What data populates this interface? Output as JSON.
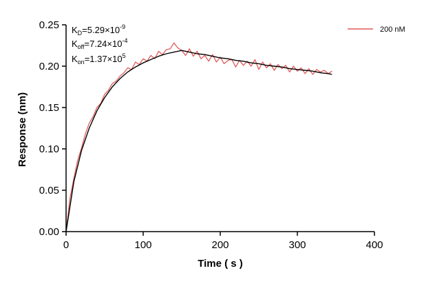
{
  "chart_data": {
    "type": "line",
    "title": "",
    "xlabel": "Time ( s )",
    "ylabel": "Response (nm)",
    "xlim": [
      0,
      400
    ],
    "ylim": [
      0,
      0.25
    ],
    "x_ticks": [
      0,
      100,
      200,
      300,
      400
    ],
    "y_ticks": [
      0.0,
      0.05,
      0.1,
      0.15,
      0.2,
      0.25
    ],
    "x_tick_labels": [
      "0",
      "100",
      "200",
      "300",
      "400"
    ],
    "y_tick_labels": [
      "0.00",
      "0.05",
      "0.10",
      "0.15",
      "0.20",
      "0.25"
    ],
    "grid": false,
    "legend": {
      "position": "top-right",
      "entries": [
        {
          "label": "200 nM",
          "color": "#e05a5a"
        }
      ]
    },
    "kinetics": {
      "kd": {
        "base": "K",
        "sub": "D",
        "mant": "=5.29×10",
        "exp": "-9"
      },
      "koff": {
        "base": "K",
        "sub": "off",
        "mant": "=7.24×10",
        "exp": "-4"
      },
      "kon": {
        "base": "K",
        "sub": "on",
        "mant": "=1.37×10",
        "exp": "5"
      }
    },
    "series": [
      {
        "name": "200 nM",
        "kind": "measured",
        "color": "#e05a5a",
        "x": [
          0,
          5,
          10,
          15,
          20,
          25,
          30,
          35,
          40,
          45,
          50,
          55,
          60,
          65,
          70,
          75,
          80,
          85,
          90,
          95,
          100,
          105,
          110,
          115,
          120,
          125,
          130,
          135,
          140,
          145,
          150,
          155,
          160,
          165,
          170,
          175,
          180,
          185,
          190,
          195,
          200,
          205,
          210,
          215,
          220,
          225,
          230,
          235,
          240,
          245,
          250,
          255,
          260,
          265,
          270,
          275,
          280,
          285,
          290,
          295,
          300,
          305,
          310,
          315,
          320,
          325,
          330,
          335,
          340,
          345
        ],
        "y": [
          0.0,
          0.04,
          0.064,
          0.086,
          0.101,
          0.118,
          0.131,
          0.139,
          0.15,
          0.155,
          0.166,
          0.171,
          0.179,
          0.182,
          0.188,
          0.192,
          0.198,
          0.196,
          0.205,
          0.202,
          0.209,
          0.206,
          0.213,
          0.209,
          0.218,
          0.214,
          0.22,
          0.221,
          0.228,
          0.222,
          0.219,
          0.213,
          0.221,
          0.212,
          0.218,
          0.209,
          0.213,
          0.206,
          0.214,
          0.205,
          0.211,
          0.203,
          0.207,
          0.208,
          0.199,
          0.207,
          0.201,
          0.206,
          0.2,
          0.208,
          0.196,
          0.205,
          0.198,
          0.203,
          0.195,
          0.202,
          0.197,
          0.201,
          0.193,
          0.2,
          0.194,
          0.198,
          0.191,
          0.197,
          0.19,
          0.196,
          0.193,
          0.195,
          0.191,
          0.194
        ]
      },
      {
        "name": "fit",
        "kind": "fit",
        "color": "#000000",
        "x": [
          0,
          10,
          20,
          30,
          40,
          50,
          60,
          70,
          80,
          90,
          100,
          110,
          120,
          130,
          140,
          150,
          160,
          170,
          180,
          190,
          200,
          210,
          220,
          230,
          240,
          250,
          260,
          270,
          280,
          290,
          300,
          310,
          320,
          330,
          340,
          345
        ],
        "y": [
          0.0,
          0.06,
          0.098,
          0.125,
          0.146,
          0.162,
          0.175,
          0.185,
          0.193,
          0.199,
          0.204,
          0.208,
          0.212,
          0.215,
          0.217,
          0.219,
          0.217,
          0.215,
          0.214,
          0.212,
          0.21,
          0.209,
          0.207,
          0.206,
          0.204,
          0.203,
          0.201,
          0.2,
          0.199,
          0.197,
          0.196,
          0.195,
          0.194,
          0.192,
          0.191,
          0.19
        ]
      }
    ]
  }
}
